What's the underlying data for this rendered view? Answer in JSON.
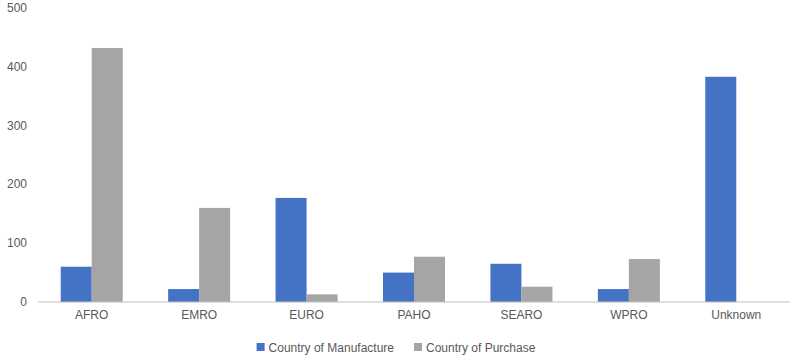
{
  "chart_data": {
    "type": "bar",
    "categories": [
      "AFRO",
      "EMRO",
      "EURO",
      "PAHO",
      "SEARO",
      "WPRO",
      "Unknown"
    ],
    "series": [
      {
        "name": "Country of Manufacture",
        "color": "#4472c4",
        "values": [
          60,
          22,
          177,
          50,
          65,
          22,
          383
        ]
      },
      {
        "name": "Country of Purchase",
        "color": "#a5a5a5",
        "values": [
          432,
          160,
          13,
          77,
          26,
          73,
          0
        ]
      }
    ],
    "ylim": [
      0,
      500
    ],
    "yticks": [
      0,
      100,
      200,
      300,
      400,
      500
    ],
    "grid": false,
    "legend": "bottom"
  }
}
